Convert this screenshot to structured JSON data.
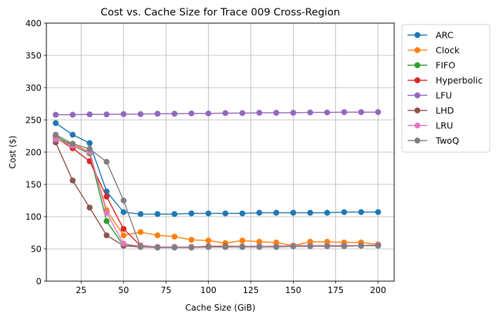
{
  "chart_data": {
    "type": "line",
    "title": "Cost vs. Cache Size for Trace 009 Cross-Region",
    "xlabel": "Cache Size (GiB)",
    "ylabel": "Cost ($)",
    "xlim": [
      4.5,
      209.5
    ],
    "ylim": [
      0,
      400
    ],
    "xticks": [
      25,
      50,
      75,
      100,
      125,
      150,
      175,
      200
    ],
    "yticks": [
      0,
      50,
      100,
      150,
      200,
      250,
      300,
      350,
      400
    ],
    "grid": true,
    "legend_position": "outside-right",
    "x": [
      10,
      20,
      30,
      40,
      50,
      60,
      70,
      80,
      90,
      100,
      110,
      120,
      130,
      140,
      150,
      160,
      170,
      180,
      190,
      200
    ],
    "series": [
      {
        "name": "ARC",
        "color": "#1f77b4",
        "values": [
          245,
          227,
          214,
          139,
          107,
          104,
          104,
          104,
          105,
          105,
          105,
          105,
          106,
          106,
          106,
          106,
          106,
          107,
          107,
          107
        ]
      },
      {
        "name": "Clock",
        "color": "#ff7f0e",
        "values": [
          220,
          213,
          200,
          110,
          71,
          76,
          71,
          69,
          64,
          63,
          59,
          63,
          61,
          60,
          55,
          61,
          61,
          60,
          60,
          57
        ]
      },
      {
        "name": "FIFO",
        "color": "#2ca02c",
        "values": [
          225,
          210,
          198,
          93,
          55,
          55,
          53,
          53,
          53,
          53,
          54,
          54,
          54,
          54,
          55,
          55,
          55,
          55,
          55,
          56
        ]
      },
      {
        "name": "Hyperbolic",
        "color": "#d62728",
        "values": [
          222,
          206,
          186,
          131,
          81,
          55,
          53,
          53,
          53,
          54,
          54,
          54,
          54,
          54,
          55,
          55,
          55,
          55,
          55,
          56
        ]
      },
      {
        "name": "LFU",
        "color": "#9467bd",
        "values": [
          258,
          258,
          258.5,
          258.5,
          259,
          259,
          259.5,
          259.5,
          260,
          260,
          260.5,
          260.5,
          261,
          261,
          261,
          261.5,
          261.5,
          262,
          262,
          262
        ]
      },
      {
        "name": "LHD",
        "color": "#8c564b",
        "values": [
          215,
          156,
          114,
          71,
          55,
          53,
          53,
          53,
          53,
          53,
          53,
          53,
          54,
          54,
          54,
          54,
          55,
          55,
          55,
          55
        ]
      },
      {
        "name": "LRU",
        "color": "#e377c2",
        "values": [
          220,
          210,
          200,
          106,
          58,
          54,
          53,
          53,
          53,
          53,
          53,
          54,
          54,
          54,
          55,
          55,
          55,
          55,
          55,
          56
        ]
      },
      {
        "name": "TwoQ",
        "color": "#7f7f7f",
        "values": [
          227,
          213,
          205,
          185,
          125,
          53,
          52,
          52,
          52,
          53,
          53,
          53,
          53,
          53,
          54,
          54,
          54,
          54,
          55,
          55
        ]
      }
    ]
  }
}
